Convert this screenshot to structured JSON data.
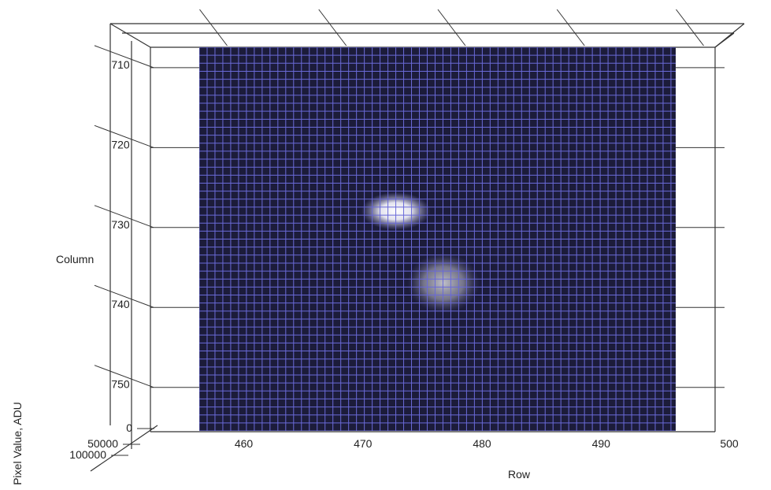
{
  "chart_data": {
    "type": "surface",
    "view": "top-down 3D mesh",
    "xlabel": "Row",
    "ylabel": "Column",
    "zlabel": "Pixel Value, ADU",
    "x_ticks": [
      460,
      470,
      480,
      490,
      500
    ],
    "y_ticks": [
      710,
      720,
      730,
      740,
      750
    ],
    "z_ticks": [
      0,
      50000,
      100000
    ],
    "xlim": [
      456,
      496
    ],
    "ylim": [
      708,
      756
    ],
    "mesh_range": {
      "row": [
        456,
        496
      ],
      "column": [
        708,
        756
      ]
    },
    "peaks": [
      {
        "row": 472.5,
        "column": 728.5,
        "intensity": "bright"
      },
      {
        "row": 476.5,
        "column": 737.5,
        "intensity": "faint"
      }
    ],
    "colors": {
      "background": "#1c1c3a",
      "mesh": "#6a6ad8",
      "peak_bright": "#ffffff",
      "peak_faint": "#b8b8c0",
      "frame": "#333333"
    }
  }
}
